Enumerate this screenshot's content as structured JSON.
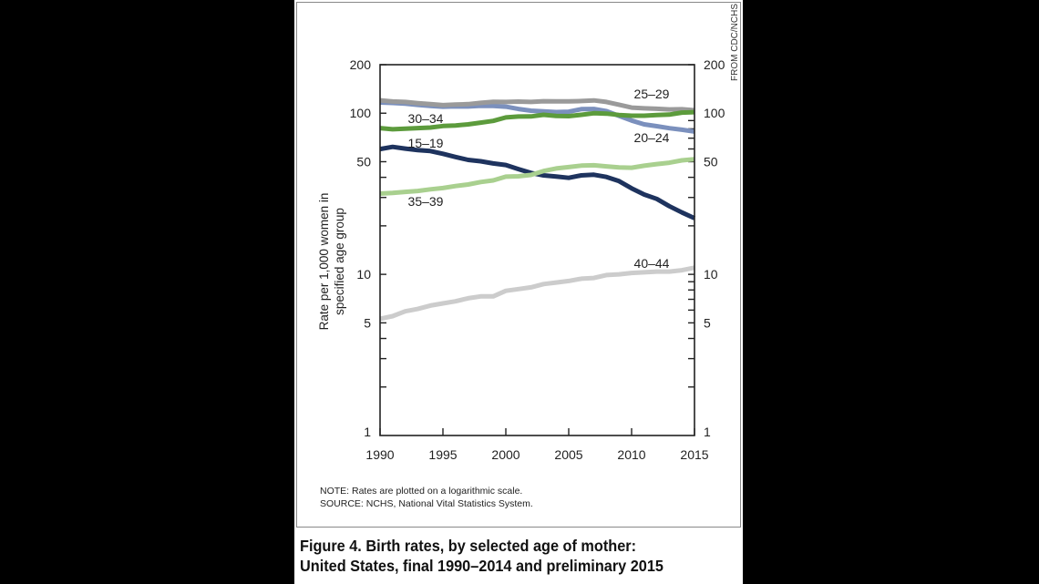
{
  "caption": {
    "line1": "Figure 4. Birth rates, by selected age of mother:",
    "line2": "United States, final 1990–2014 and preliminary 2015"
  },
  "note": "NOTE: Rates are plotted on a logarithmic scale.",
  "source": "SOURCE: NCHS, National Vital Statistics System.",
  "credit": "FROM CDC/NCHS",
  "chart_data": {
    "type": "line",
    "title": "",
    "xlabel": "",
    "ylabel_line1": "Rate per 1,000 women in",
    "ylabel_line2": "specified age group",
    "yscale": "log",
    "ylim": [
      1,
      200
    ],
    "xlim": [
      1990,
      2015
    ],
    "xticks": [
      "1990",
      "1995",
      "2000",
      "2005",
      "2010",
      "2015"
    ],
    "yticks": [
      "1",
      "5",
      "10",
      "50",
      "100",
      "200"
    ],
    "grid": false,
    "legend": "inline labels",
    "x": [
      1990,
      1991,
      1992,
      1993,
      1994,
      1995,
      1996,
      1997,
      1998,
      1999,
      2000,
      2001,
      2002,
      2003,
      2004,
      2005,
      2006,
      2007,
      2008,
      2009,
      2010,
      2011,
      2012,
      2013,
      2014,
      2015
    ],
    "series": [
      {
        "name": "15–19",
        "color": "#1e335e",
        "values": [
          59.9,
          61.8,
          60.3,
          59.0,
          58.2,
          56.0,
          53.5,
          51.3,
          50.3,
          48.8,
          47.7,
          45.0,
          42.6,
          41.1,
          40.5,
          39.7,
          41.1,
          41.5,
          40.2,
          37.9,
          34.2,
          31.3,
          29.4,
          26.5,
          24.2,
          22.3
        ]
      },
      {
        "name": "20–24",
        "color": "#7b90bd",
        "values": [
          116.5,
          115.7,
          114.6,
          112.6,
          111.1,
          109.8,
          110.2,
          110.1,
          111.2,
          111.0,
          109.7,
          106.2,
          103.6,
          102.6,
          101.7,
          102.2,
          105.9,
          106.3,
          103.0,
          96.2,
          90.0,
          85.3,
          83.1,
          80.7,
          79.0,
          76.9
        ]
      },
      {
        "name": "25–29",
        "color": "#9a9a9a",
        "values": [
          120.2,
          118.2,
          117.4,
          115.5,
          113.9,
          112.2,
          113.1,
          113.8,
          115.9,
          117.8,
          117.4,
          118.0,
          117.4,
          118.7,
          118.5,
          118.3,
          119.0,
          120.0,
          117.5,
          113.0,
          108.3,
          107.2,
          106.5,
          105.5,
          105.8,
          104.3
        ]
      },
      {
        "name": "30–34",
        "color": "#5c9b3c",
        "values": [
          80.8,
          79.5,
          80.2,
          80.8,
          81.5,
          83.3,
          83.9,
          85.3,
          87.4,
          89.6,
          94.1,
          95.3,
          95.5,
          97.7,
          96.2,
          95.8,
          97.7,
          99.9,
          99.4,
          97.5,
          96.5,
          96.5,
          97.3,
          98.0,
          100.8,
          101.5
        ]
      },
      {
        "name": "35–39",
        "color": "#a9d08f",
        "values": [
          31.7,
          32.0,
          32.5,
          32.9,
          33.7,
          34.3,
          35.3,
          36.1,
          37.4,
          38.3,
          40.4,
          40.6,
          41.4,
          43.8,
          45.4,
          46.3,
          47.3,
          47.5,
          46.8,
          46.1,
          45.9,
          47.2,
          48.3,
          49.3,
          51.0,
          51.8
        ]
      },
      {
        "name": "40–44",
        "color": "#cccccc",
        "values": [
          5.3,
          5.5,
          5.9,
          6.1,
          6.4,
          6.6,
          6.8,
          7.1,
          7.3,
          7.3,
          7.9,
          8.1,
          8.3,
          8.7,
          8.9,
          9.1,
          9.4,
          9.5,
          9.9,
          10.0,
          10.2,
          10.3,
          10.4,
          10.4,
          10.6,
          11.0
        ]
      }
    ]
  }
}
